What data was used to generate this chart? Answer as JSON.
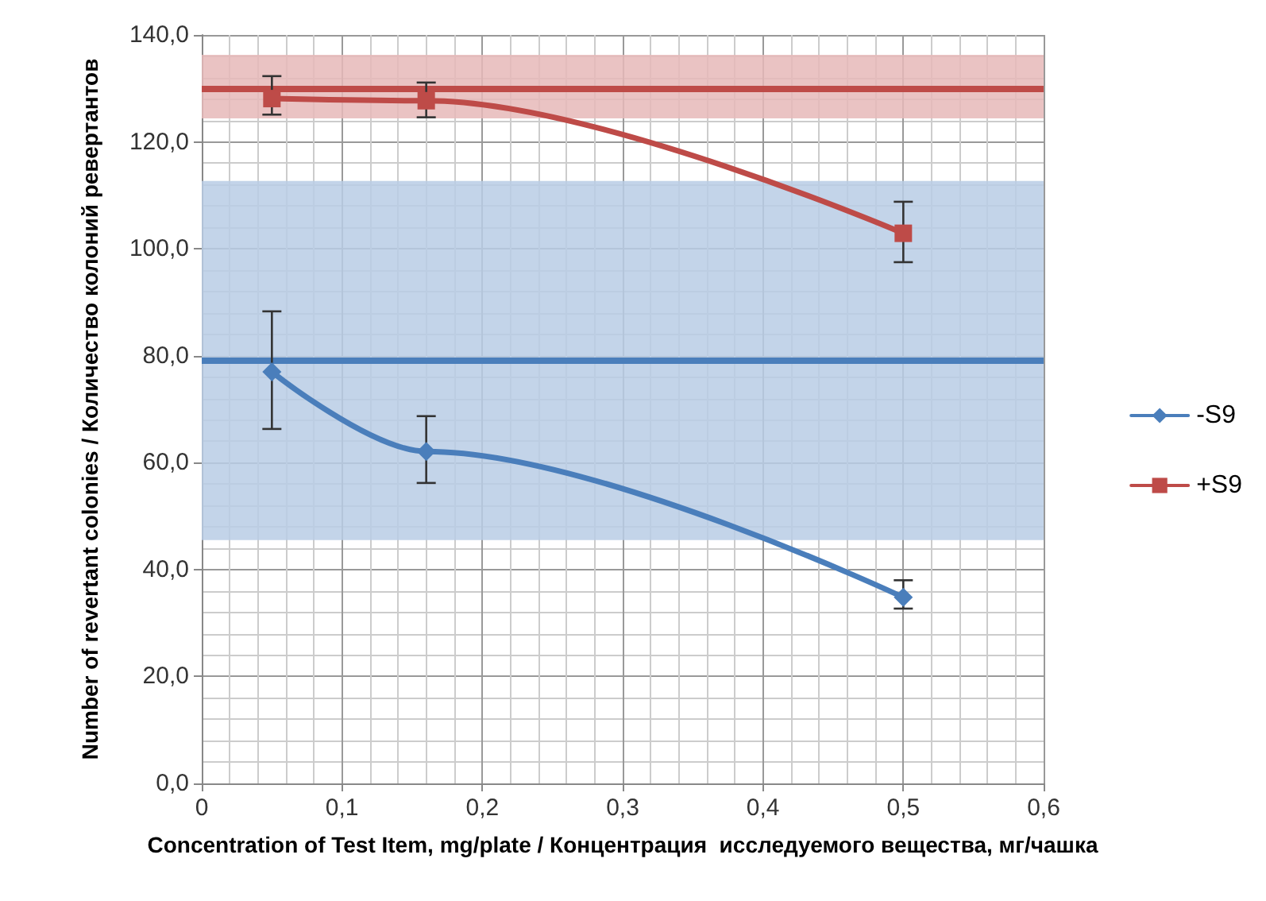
{
  "chart_data": {
    "type": "line",
    "xlabel": "Concentration of Test Item, mg/plate / Концентрация  исследуемого вещества, мг/чашка",
    "ylabel": "Number of revertant colonies / Количество колоний ревертантов",
    "x": [
      0.05,
      0.16,
      0.5
    ],
    "series": [
      {
        "name": "-S9",
        "color": "#4a7ebb",
        "marker": "diamond",
        "values": [
          77.0,
          62.1,
          34.8
        ],
        "errors": [
          [
            66.3,
            88.3
          ],
          [
            56.2,
            68.7
          ],
          [
            32.7,
            38.0
          ]
        ]
      },
      {
        "name": "+S9",
        "color": "#be4b48",
        "marker": "square",
        "values": [
          128.1,
          127.7,
          102.9
        ],
        "errors": [
          [
            125.1,
            132.3
          ],
          [
            124.6,
            131.1
          ],
          [
            97.5,
            108.8
          ]
        ]
      }
    ],
    "xlim": [
      0,
      0.6
    ],
    "xticks": [
      0,
      {
        "value": 0.1,
        "label": "0,1"
      },
      {
        "value": 0.2,
        "label": "0,2"
      },
      {
        "value": 0.3,
        "label": "0,3"
      },
      {
        "value": 0.4,
        "label": "0,4"
      },
      {
        "value": 0.5,
        "label": "0,5"
      },
      {
        "value": 0.6,
        "label": "0,6"
      }
    ],
    "ylim": [
      0,
      140
    ],
    "yticks": [
      {
        "value": 0,
        "label": "0,0"
      },
      {
        "value": 20,
        "label": "20,0"
      },
      {
        "value": 40,
        "label": "40,0"
      },
      {
        "value": 60,
        "label": "60,0"
      },
      {
        "value": 80,
        "label": "80,0"
      },
      {
        "value": 100,
        "label": "100,0"
      },
      {
        "value": 120,
        "label": "120,0"
      },
      {
        "value": 140,
        "label": "140,0"
      }
    ],
    "ref_lines": [
      {
        "axis": "y",
        "value": 79,
        "color": "#4a7ebb"
      },
      {
        "axis": "y",
        "value": 130,
        "color": "#be4b48"
      }
    ],
    "bands": [
      {
        "axis": "y",
        "from": 45.5,
        "to": 112.7,
        "color": "#b9cde5"
      },
      {
        "axis": "y",
        "from": 124.4,
        "to": 136.3,
        "color": "#e6b9b8"
      }
    ],
    "grid": true,
    "legend": "right",
    "line_style": "solid"
  }
}
